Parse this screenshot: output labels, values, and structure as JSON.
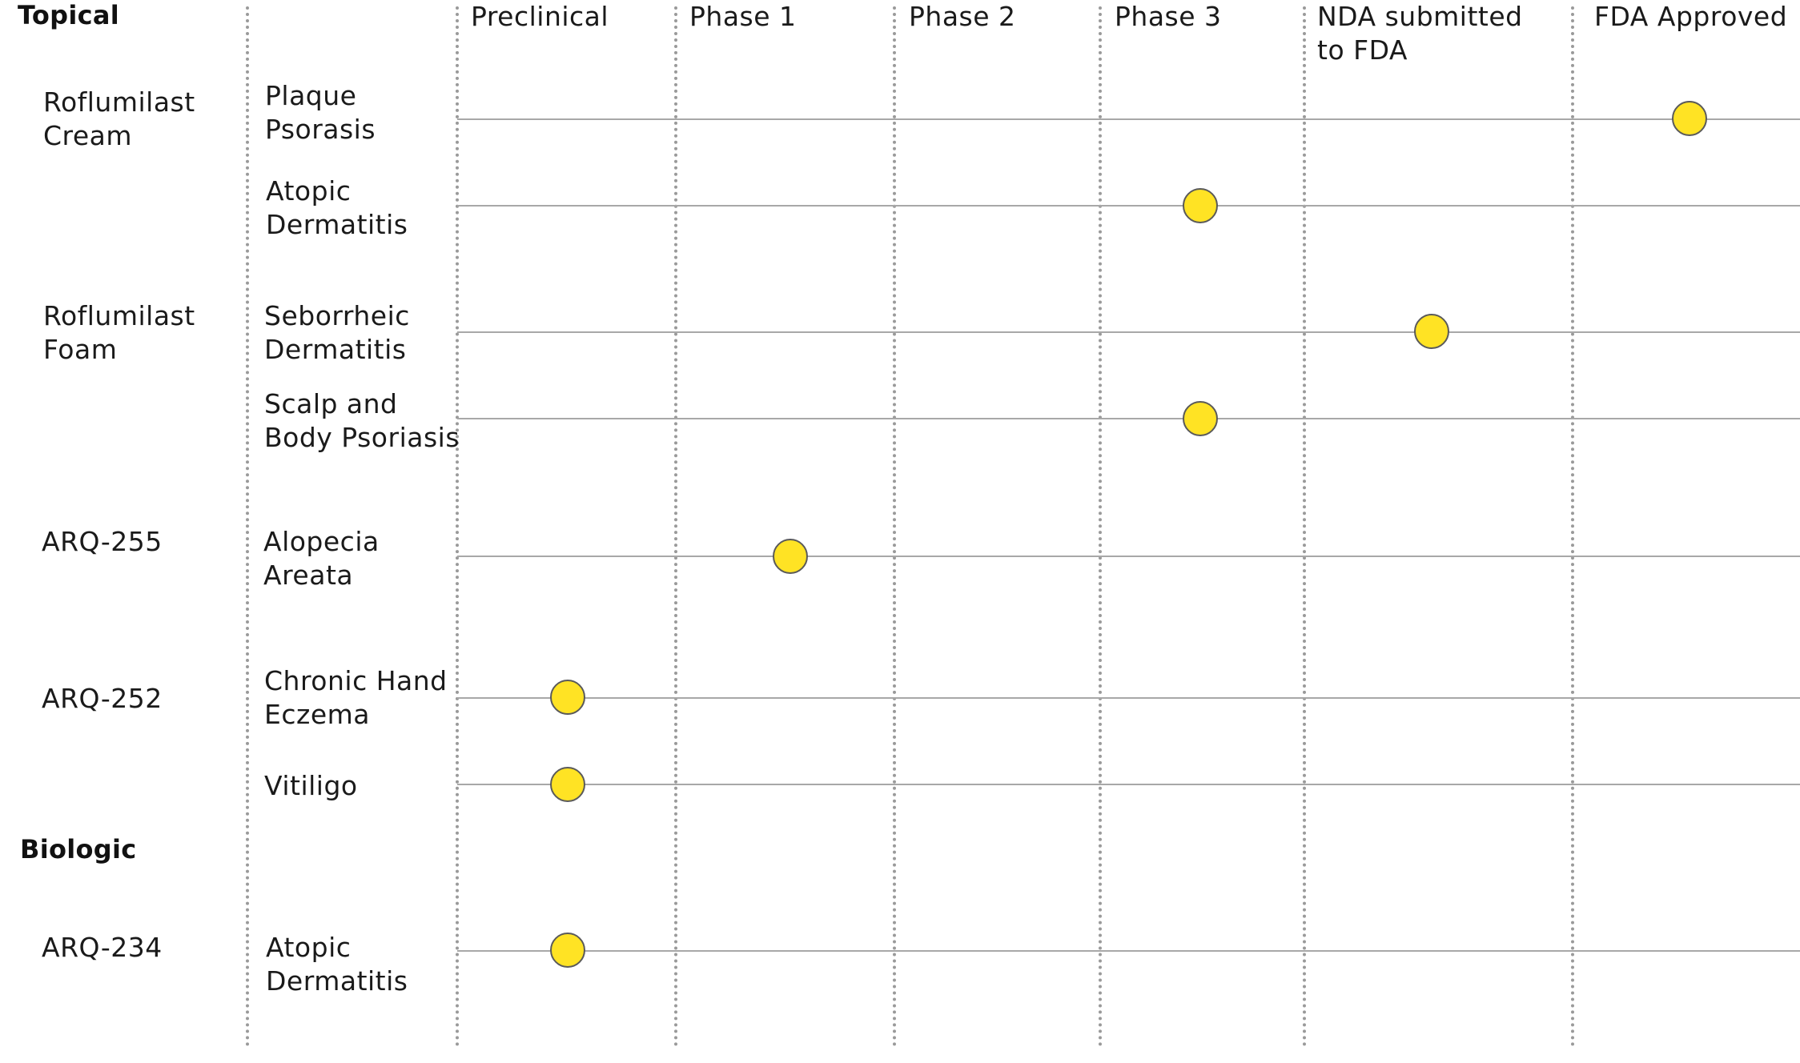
{
  "chart_data": {
    "type": "table",
    "colors": {
      "marker": "#ffe324",
      "marker_border": "#5a5a5a",
      "track": "#a8a8a8",
      "divider": "#9a9a9a"
    },
    "phases": [
      "Preclinical",
      "Phase 1",
      "Phase 2",
      "Phase 3",
      "NDA submitted\nto FDA",
      "FDA Approved"
    ],
    "sections": [
      "Topical",
      "Biologic"
    ],
    "rows": [
      {
        "section": "Topical",
        "product": "Roflumilast\nCream",
        "indication": "Plaque\nPsorasis",
        "stage": "FDA Approved"
      },
      {
        "section": "Topical",
        "product": "",
        "indication": "Atopic\nDermatitis",
        "stage": "Phase 3"
      },
      {
        "section": "Topical",
        "product": "Roflumilast\nFoam",
        "indication": "Seborrheic\nDermatitis",
        "stage": "NDA submitted\nto FDA"
      },
      {
        "section": "Topical",
        "product": "",
        "indication": "Scalp and\nBody Psoriasis",
        "stage": "Phase 3"
      },
      {
        "section": "Topical",
        "product": "ARQ-255",
        "indication": "Alopecia\nAreata",
        "stage": "Phase 1"
      },
      {
        "section": "Topical",
        "product": "ARQ-252",
        "indication": "Chronic Hand\nEczema",
        "stage": "Preclinical"
      },
      {
        "section": "Topical",
        "product": "",
        "indication": "Vitiligo",
        "stage": "Preclinical"
      },
      {
        "section": "Biologic",
        "product": "ARQ-234",
        "indication": "Atopic\nDermatitis",
        "stage": "Preclinical"
      }
    ]
  }
}
